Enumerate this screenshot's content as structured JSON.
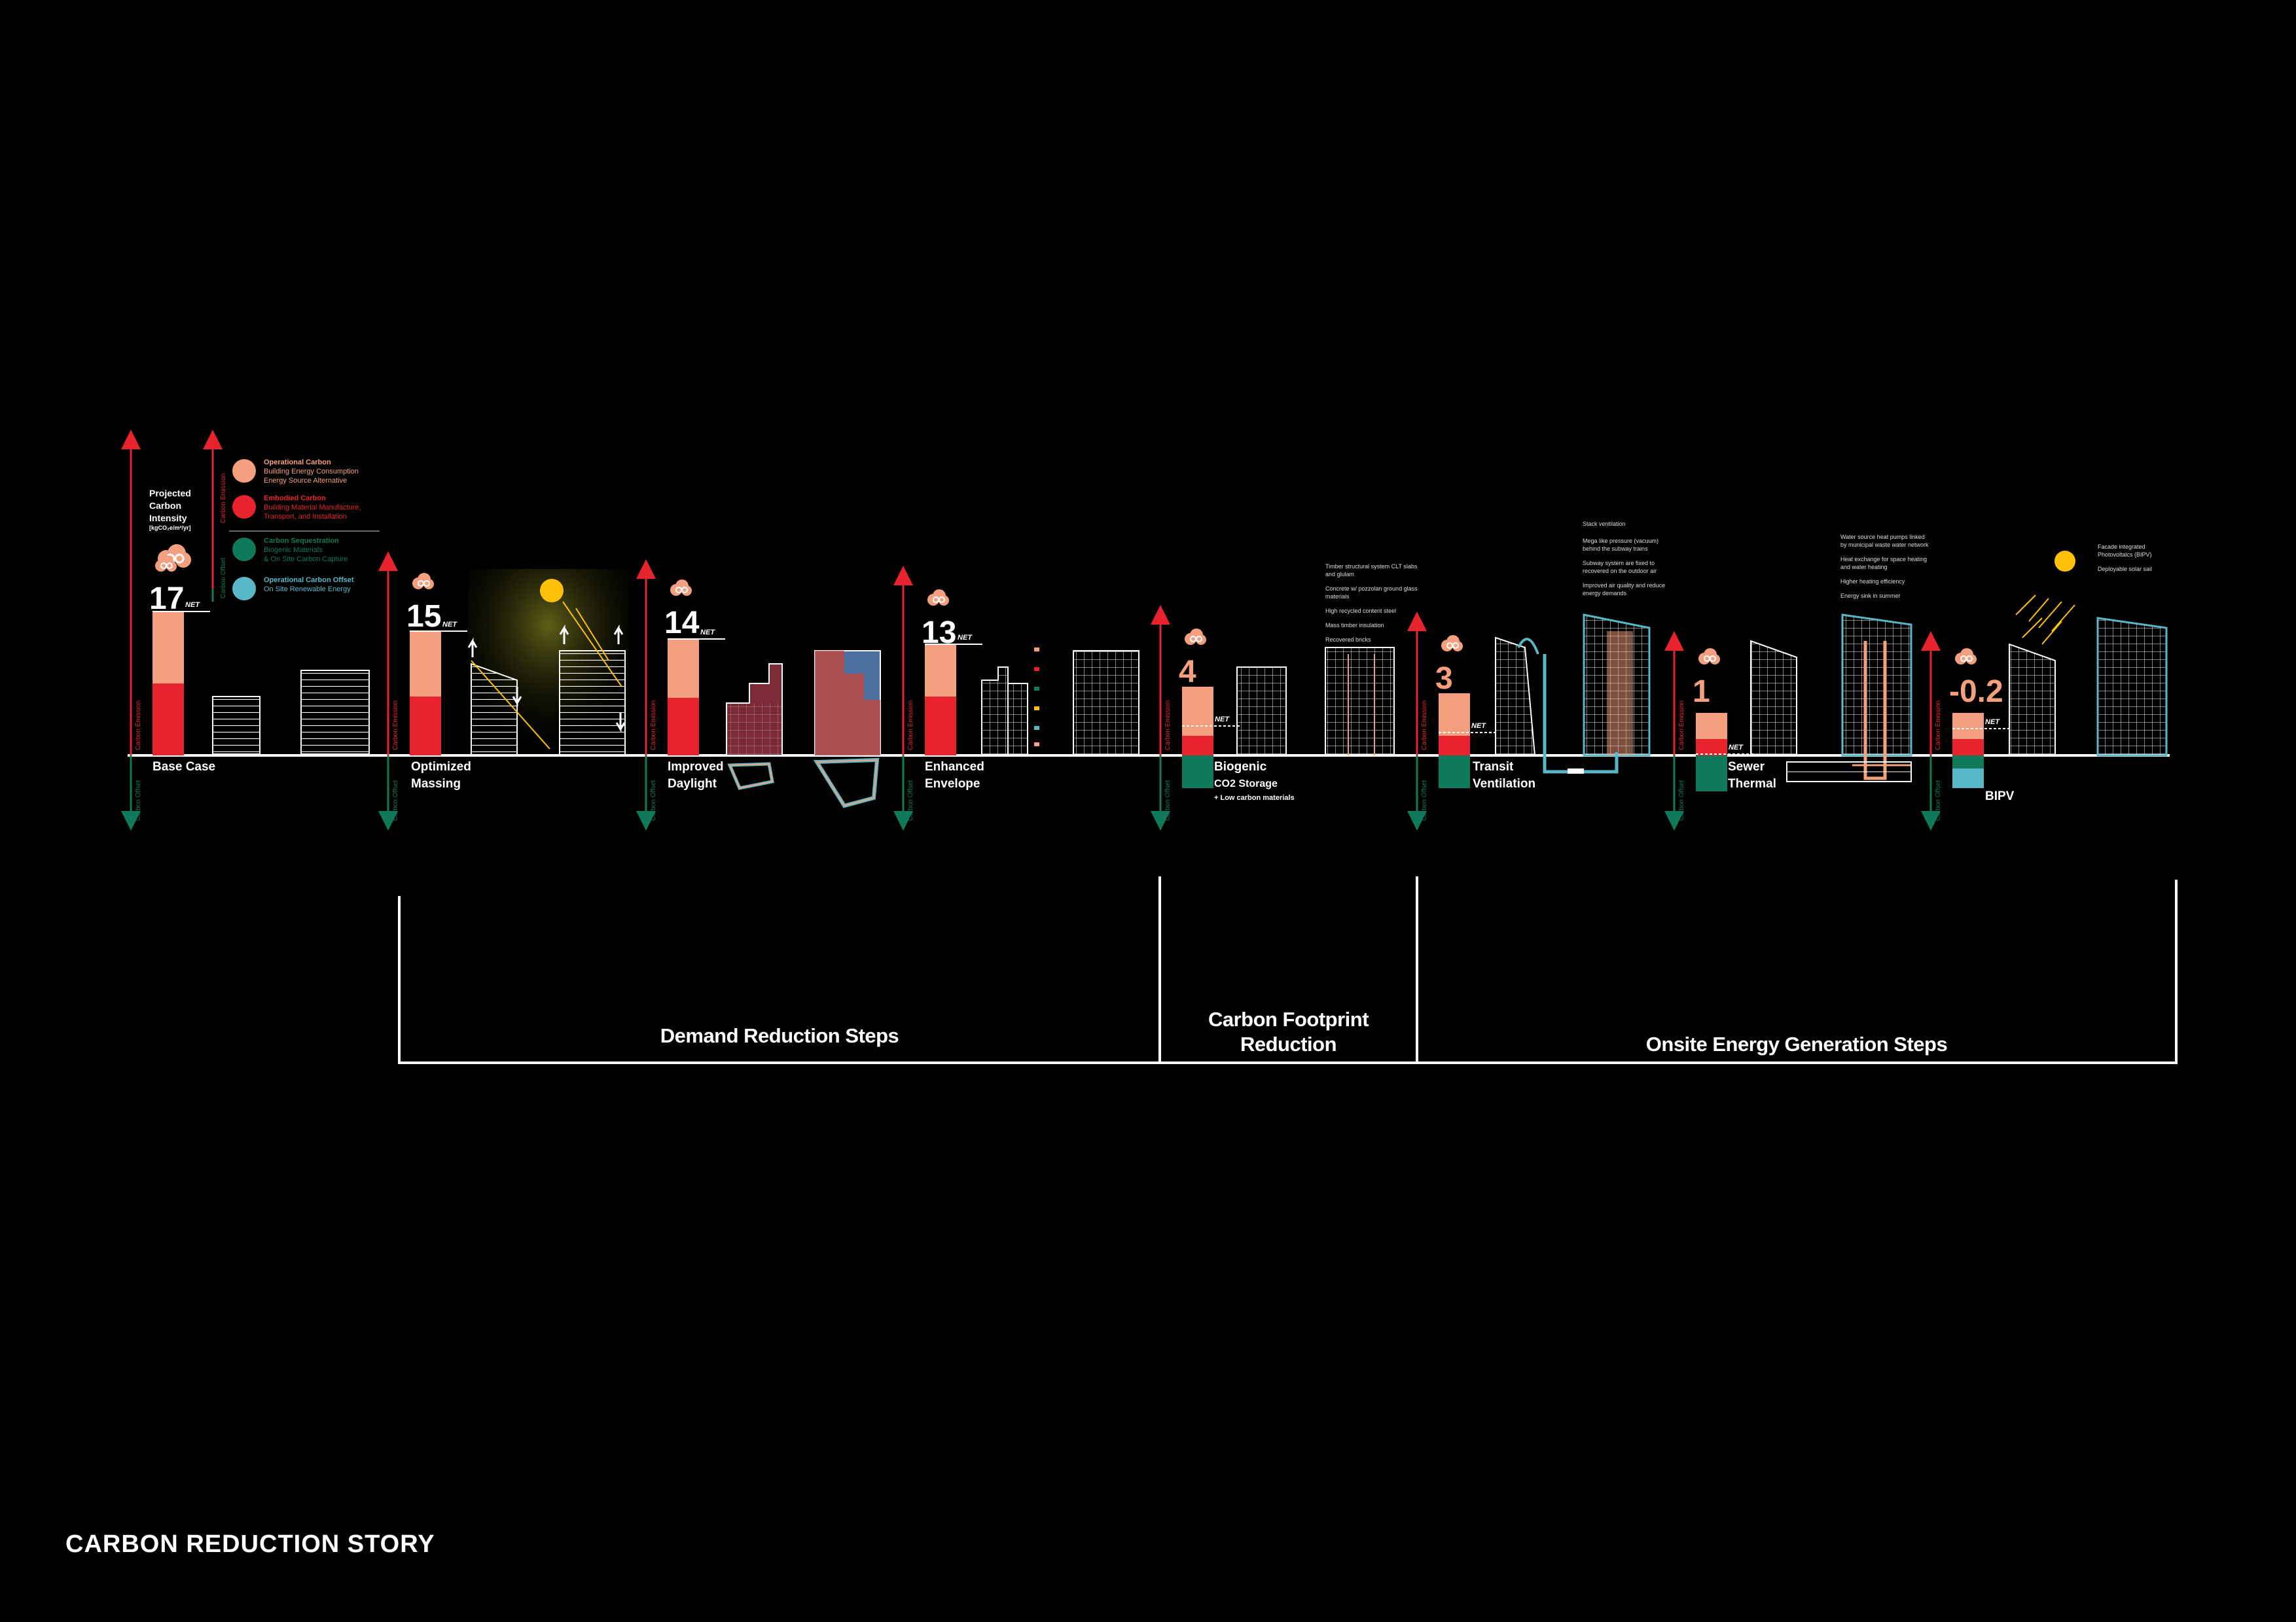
{
  "page_title": "CARBON REDUCTION STORY",
  "legend": {
    "title": "Projected Carbon Intensity",
    "unit": "[kgCO₂e/m²/yr]",
    "axis_emission": "Carbon Emission",
    "axis_offset": "Carbon Offset",
    "items": [
      {
        "heading": "Operational Carbon",
        "line1": "Building Energy Consumption",
        "line2": "Energy Source Alternative",
        "color": "#f4a07e",
        "icon": "lightning-icon"
      },
      {
        "heading": "Embodied Carbon",
        "line1": "Building Material Manufacture,",
        "line2": "Transport, and Installation",
        "color": "#e8232e",
        "icon": "crane-icon"
      },
      {
        "heading": "Carbon Sequestration",
        "line1": "Biogenic Materials",
        "line2": "& On Site Carbon Capture",
        "color": "#0f7a5a",
        "icon": "tree-icon"
      },
      {
        "heading": "Operational Carbon Offset",
        "line1": "On Site Renewable Energy",
        "line2": "",
        "color": "#59b8c8",
        "icon": "solar-icon"
      }
    ]
  },
  "net_label": "NET",
  "steps": [
    {
      "id": "base",
      "value": "17",
      "label1": "Base Case",
      "label2": "",
      "sub": ""
    },
    {
      "id": "massing",
      "value": "15",
      "label1": "Optimized",
      "label2": "Massing",
      "sub": ""
    },
    {
      "id": "daylight",
      "value": "14",
      "label1": "Improved",
      "label2": "Daylight",
      "sub": ""
    },
    {
      "id": "envelope",
      "value": "13",
      "label1": "Enhanced",
      "label2": "Envelope",
      "sub": ""
    },
    {
      "id": "biogenic",
      "value": "4",
      "label1": "Biogenic",
      "label2": "CO2 Storage",
      "sub": "+ Low carbon materials"
    },
    {
      "id": "transit",
      "value": "3",
      "label1": "Transit",
      "label2": "Ventilation",
      "sub": ""
    },
    {
      "id": "sewer",
      "value": "1",
      "label1": "Sewer",
      "label2": "Thermal",
      "sub": ""
    },
    {
      "id": "bipv",
      "value": "-0.2",
      "label1": "BIPV",
      "label2": "",
      "sub": ""
    }
  ],
  "phases": [
    {
      "label1": "Demand Reduction Steps",
      "label2": ""
    },
    {
      "label1": "Carbon Footprint",
      "label2": "Reduction"
    },
    {
      "label1": "Onsite Energy Generation Steps",
      "label2": ""
    }
  ],
  "notes": {
    "biogenic": [
      "Timber structural system CLT slabs and glulam",
      "Concrete w/ pozzolan ground glass materials",
      "High recycled content steel",
      "Mass timber insulation",
      "Recovered bricks"
    ],
    "transit": [
      "Stack ventilation",
      "Mega like pressure (vacuum) behind the subway trains",
      "Subway system are fixed to recovered on the outdoor air",
      "Improved air quality and reduce energy demands"
    ],
    "sewer": [
      "Water source heat pumps linked by municipal waste water network",
      "Heat exchange for space heating and water heating",
      "Higher heating efficiency",
      "Energy sink in summer"
    ],
    "bipv": [
      "Facade integrated Photovoltaics (BIPV)",
      "Deployable solar sail"
    ]
  },
  "colors": {
    "operational": "#f4a07e",
    "embodied": "#e8232e",
    "sequestration": "#0f7a5a",
    "offset": "#59b8c8",
    "sun": "#ffc107"
  }
}
